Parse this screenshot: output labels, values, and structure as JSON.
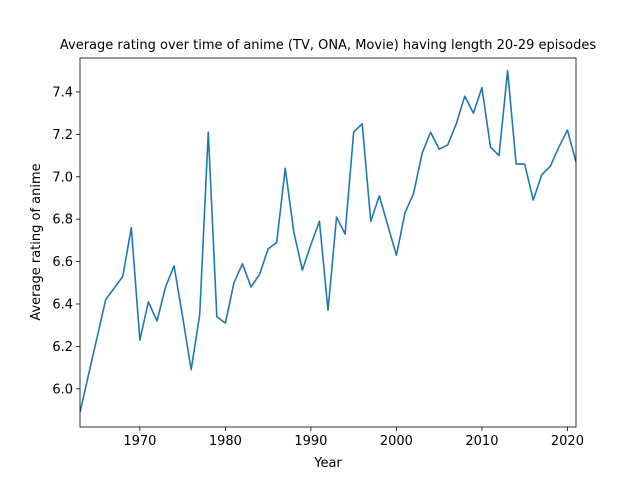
{
  "chart_data": {
    "type": "line",
    "title": "Average rating over time of anime (TV, ONA, Movie) having length 20-29 episodes",
    "xlabel": "Year",
    "ylabel": "Average rating of anime",
    "xlim": [
      1963,
      2021
    ],
    "ylim": [
      5.82,
      7.56
    ],
    "xticks": [
      1970,
      1980,
      1990,
      2000,
      2010,
      2020
    ],
    "yticks": [
      6.0,
      6.2,
      6.4,
      6.6,
      6.8,
      7.0,
      7.2,
      7.4
    ],
    "xtick_labels": [
      "1970",
      "1980",
      "1990",
      "2000",
      "2010",
      "2020"
    ],
    "ytick_labels": [
      "6.0",
      "6.2",
      "6.4",
      "6.6",
      "6.8",
      "7.0",
      "7.2",
      "7.4"
    ],
    "grid": false,
    "series_color": "#1f77b4",
    "series": [
      {
        "x": [
          1963,
          1966,
          1968,
          1969,
          1970,
          1971,
          1972,
          1973,
          1974,
          1975,
          1976,
          1977,
          1978,
          1979,
          1980,
          1981,
          1982,
          1983,
          1984,
          1985,
          1986,
          1987,
          1988,
          1989,
          1990,
          1991,
          1992,
          1993,
          1994,
          1995,
          1996,
          1997,
          1998,
          1999,
          2000,
          2001,
          2002,
          2003,
          2004,
          2005,
          2006,
          2007,
          2008,
          2009,
          2010,
          2011,
          2012,
          2013,
          2014,
          2015,
          2016,
          2017,
          2018,
          2019,
          2020,
          2021
        ],
        "y": [
          5.89,
          6.42,
          6.53,
          6.76,
          6.23,
          6.41,
          6.32,
          6.48,
          6.58,
          6.34,
          6.09,
          6.35,
          7.21,
          6.34,
          6.31,
          6.5,
          6.59,
          6.48,
          6.54,
          6.66,
          6.69,
          7.04,
          6.74,
          6.56,
          6.68,
          6.79,
          6.37,
          6.81,
          6.73,
          7.21,
          7.25,
          6.79,
          6.91,
          6.77,
          6.63,
          6.83,
          6.92,
          7.11,
          7.21,
          7.13,
          7.15,
          7.25,
          7.38,
          7.3,
          7.42,
          7.14,
          7.1,
          7.5,
          7.06,
          7.06,
          6.89,
          7.01,
          7.05,
          7.14,
          7.22,
          7.07
        ]
      }
    ]
  }
}
